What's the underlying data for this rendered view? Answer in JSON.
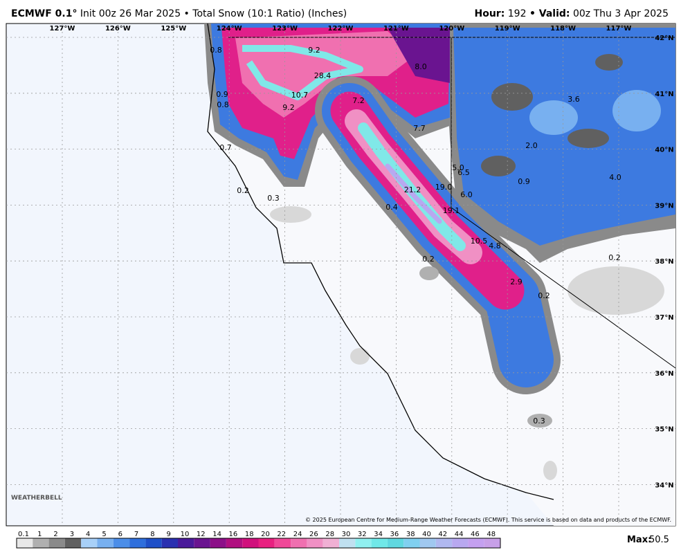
{
  "header": {
    "model": "ECMWF 0.1°",
    "description": "Init 00z 26 Mar 2025 • Total Snow (10:1 Ratio) (Inches)",
    "hour_label": "Hour:",
    "hour": "192",
    "valid_label": "• Valid:",
    "valid": "00z Thu 3 Apr 2025"
  },
  "map": {
    "longitude_labels": [
      "127°W",
      "126°W",
      "125°W",
      "124°W",
      "123°W",
      "122°W",
      "121°W",
      "120°W",
      "119°W",
      "118°W",
      "117°W"
    ],
    "latitude_labels": [
      "42°N",
      "41°N",
      "40°N",
      "39°N",
      "38°N",
      "37°N",
      "36°N",
      "35°N",
      "34°N"
    ],
    "point_labels": [
      "0.8",
      "9.2",
      "28.4",
      "8.0",
      "0.9",
      "10.7",
      "7.2",
      "3.6",
      "0.8",
      "9.2",
      "7.7",
      "2.0",
      "0.7",
      "5.0",
      "6.5",
      "4.0",
      "0.9",
      "0.2",
      "21.2",
      "19.0",
      "6.0",
      "0.3",
      "0.4",
      "19.1",
      "10.5",
      "4.8",
      "0.2",
      "0.2",
      "2.9",
      "0.2",
      "0.3"
    ],
    "logo": "WEATHERBELL",
    "copyright": "© 2025 European Centre for Medium-Range Weather Forecasts (ECMWF). This service is based on data and products of the ECMWF."
  },
  "legend": {
    "ticks": [
      0.1,
      1,
      2,
      3,
      4,
      5,
      6,
      7,
      8,
      9,
      10,
      12,
      14,
      16,
      18,
      20,
      22,
      24,
      26,
      28,
      30,
      32,
      34,
      36,
      38,
      40,
      42,
      44,
      46,
      48
    ],
    "colors": [
      "#e8e8e8",
      "#b0b0b0",
      "#8a8a8a",
      "#606060",
      "#a8d0f8",
      "#78b0f0",
      "#4c8ee8",
      "#2f6fdc",
      "#1f50c8",
      "#2a30b0",
      "#4a1a9a",
      "#6a1490",
      "#8c1088",
      "#b01080",
      "#d0107c",
      "#e82080",
      "#f04898",
      "#f070b0",
      "#f090c4",
      "#f0b0d4",
      "#c0e0f0",
      "#90f0f0",
      "#70e8e8",
      "#60d8e0",
      "#80d0f0",
      "#a0c8f0",
      "#b0b8f0",
      "#b8a8f0",
      "#c4a0f0",
      "#c8a0e8"
    ],
    "max_label": "Max:",
    "max": "50.5"
  }
}
